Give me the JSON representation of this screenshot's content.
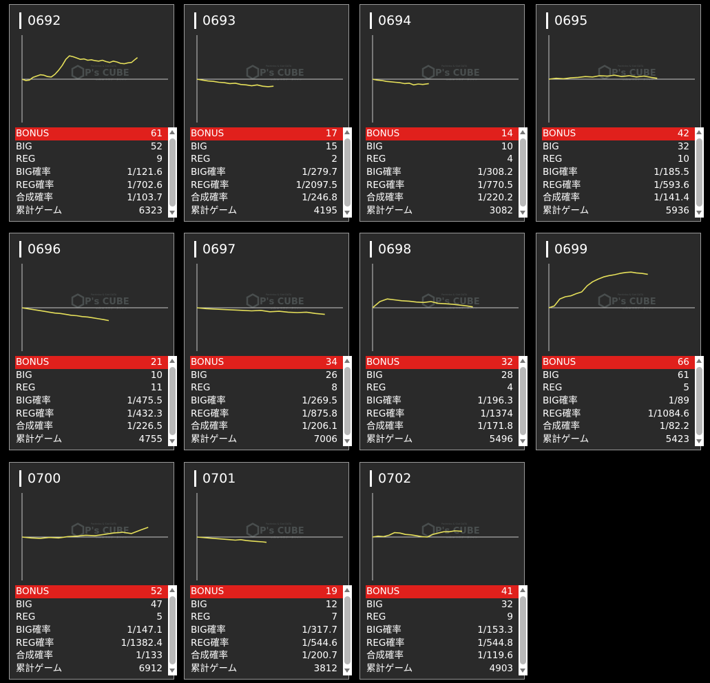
{
  "colors": {
    "background": "#000000",
    "card": "#2a2a2a",
    "bonus_row": "#e0201c",
    "graph_line": "#e6e05a",
    "axis": "#c8c8c8"
  },
  "watermark": {
    "logo": "P's CUBE",
    "small_top": "Pachinko & Slot DATA",
    "small_bottom": "online ミニデータサイト"
  },
  "labels": {
    "bonus": "BONUS",
    "big": "BIG",
    "reg": "REG",
    "big_rate": "BIG確率",
    "reg_rate": "REG確率",
    "combined_rate": "合成確率",
    "total_games": "累計ゲーム"
  },
  "machines": [
    {
      "id": "0692",
      "bonus": "61",
      "big": "52",
      "reg": "9",
      "big_rate": "1/121.6",
      "reg_rate": "1/702.6",
      "combined_rate": "1/103.7",
      "total_games": "6323"
    },
    {
      "id": "0693",
      "bonus": "17",
      "big": "15",
      "reg": "2",
      "big_rate": "1/279.7",
      "reg_rate": "1/2097.5",
      "combined_rate": "1/246.8",
      "total_games": "4195"
    },
    {
      "id": "0694",
      "bonus": "14",
      "big": "10",
      "reg": "4",
      "big_rate": "1/308.2",
      "reg_rate": "1/770.5",
      "combined_rate": "1/220.2",
      "total_games": "3082"
    },
    {
      "id": "0695",
      "bonus": "42",
      "big": "32",
      "reg": "10",
      "big_rate": "1/185.5",
      "reg_rate": "1/593.6",
      "combined_rate": "1/141.4",
      "total_games": "5936"
    },
    {
      "id": "0696",
      "bonus": "21",
      "big": "10",
      "reg": "11",
      "big_rate": "1/475.5",
      "reg_rate": "1/432.3",
      "combined_rate": "1/226.5",
      "total_games": "4755"
    },
    {
      "id": "0697",
      "bonus": "34",
      "big": "26",
      "reg": "8",
      "big_rate": "1/269.5",
      "reg_rate": "1/875.8",
      "combined_rate": "1/206.1",
      "total_games": "7006"
    },
    {
      "id": "0698",
      "bonus": "32",
      "big": "28",
      "reg": "4",
      "big_rate": "1/196.3",
      "reg_rate": "1/1374",
      "combined_rate": "1/171.8",
      "total_games": "5496"
    },
    {
      "id": "0699",
      "bonus": "66",
      "big": "61",
      "reg": "5",
      "big_rate": "1/89",
      "reg_rate": "1/1084.6",
      "combined_rate": "1/82.2",
      "total_games": "5423"
    },
    {
      "id": "0700",
      "bonus": "52",
      "big": "47",
      "reg": "5",
      "big_rate": "1/147.1",
      "reg_rate": "1/1382.4",
      "combined_rate": "1/133",
      "total_games": "6912"
    },
    {
      "id": "0701",
      "bonus": "19",
      "big": "12",
      "reg": "7",
      "big_rate": "1/317.7",
      "reg_rate": "1/544.6",
      "combined_rate": "1/200.7",
      "total_games": "3812"
    },
    {
      "id": "0702",
      "bonus": "41",
      "big": "32",
      "reg": "9",
      "big_rate": "1/153.3",
      "reg_rate": "1/544.8",
      "combined_rate": "1/119.6",
      "total_games": "4903"
    }
  ],
  "chart_data": [
    {
      "type": "line",
      "x": [
        0,
        200,
        400,
        600,
        800,
        1000,
        1200,
        1400,
        1600,
        1800,
        2000,
        2200,
        2400,
        2600,
        2800,
        3000,
        3200,
        3400,
        3600,
        3800,
        4000,
        4200,
        4400,
        4600,
        4800,
        5000,
        5200,
        5400,
        5600,
        5800,
        6000,
        6200,
        6323
      ],
      "y": [
        0,
        -60,
        -40,
        80,
        140,
        200,
        180,
        120,
        100,
        220,
        400,
        620,
        900,
        1060,
        1020,
        960,
        900,
        920,
        860,
        880,
        840,
        820,
        860,
        800,
        760,
        820,
        780,
        720,
        700,
        740,
        760,
        900,
        980
      ]
    },
    {
      "type": "line",
      "x": [
        0,
        300,
        600,
        900,
        1200,
        1500,
        1800,
        2100,
        2400,
        2700,
        3000,
        3300,
        3600,
        3900,
        4195
      ],
      "y": [
        0,
        -40,
        -80,
        -100,
        -140,
        -160,
        -200,
        -180,
        -240,
        -260,
        -300,
        -260,
        -320,
        -340,
        -320
      ]
    },
    {
      "type": "line",
      "x": [
        0,
        250,
        500,
        750,
        1000,
        1250,
        1500,
        1750,
        2000,
        2250,
        2500,
        2750,
        3082
      ],
      "y": [
        0,
        -40,
        -60,
        -100,
        -120,
        -140,
        -160,
        -200,
        -180,
        -260,
        -220,
        -240,
        -200
      ]
    },
    {
      "type": "line",
      "x": [
        0,
        400,
        800,
        1200,
        1600,
        2000,
        2400,
        2800,
        3200,
        3600,
        4000,
        4400,
        4800,
        5200,
        5600,
        5936
      ],
      "y": [
        0,
        40,
        20,
        60,
        80,
        120,
        100,
        160,
        140,
        180,
        120,
        160,
        100,
        140,
        80,
        40
      ]
    },
    {
      "type": "line",
      "x": [
        0,
        300,
        600,
        900,
        1200,
        1500,
        1800,
        2100,
        2400,
        2700,
        3000,
        3300,
        3600,
        3900,
        4200,
        4500,
        4755
      ],
      "y": [
        0,
        -40,
        -80,
        -120,
        -160,
        -200,
        -240,
        -260,
        -300,
        -340,
        -360,
        -400,
        -420,
        -460,
        -500,
        -540,
        -580
      ]
    },
    {
      "type": "line",
      "x": [
        0,
        500,
        1000,
        1500,
        2000,
        2500,
        3000,
        3500,
        4000,
        4500,
        5000,
        5500,
        6000,
        6500,
        7006
      ],
      "y": [
        0,
        -40,
        -60,
        -80,
        -100,
        -120,
        -140,
        -120,
        -180,
        -160,
        -200,
        -220,
        -200,
        -260,
        -300
      ]
    },
    {
      "type": "line",
      "x": [
        0,
        400,
        800,
        1200,
        1600,
        2000,
        2400,
        2800,
        3200,
        3600,
        4000,
        4400,
        4800,
        5200,
        5496
      ],
      "y": [
        0,
        280,
        400,
        360,
        320,
        300,
        260,
        240,
        280,
        200,
        180,
        160,
        120,
        80,
        40
      ]
    },
    {
      "type": "line",
      "x": [
        0,
        300,
        600,
        900,
        1200,
        1500,
        1800,
        2100,
        2400,
        2700,
        3000,
        3300,
        3600,
        3900,
        4200,
        4500,
        4800,
        5100,
        5423
      ],
      "y": [
        0,
        80,
        400,
        500,
        540,
        640,
        720,
        1000,
        1180,
        1300,
        1400,
        1460,
        1500,
        1560,
        1600,
        1620,
        1580,
        1560,
        1520
      ]
    },
    {
      "type": "line",
      "x": [
        0,
        500,
        1000,
        1500,
        2000,
        2500,
        3000,
        3500,
        4000,
        4500,
        5000,
        5500,
        6000,
        6500,
        6912
      ],
      "y": [
        0,
        -40,
        -60,
        -20,
        -40,
        20,
        40,
        80,
        60,
        120,
        180,
        220,
        160,
        320,
        440
      ]
    },
    {
      "type": "line",
      "x": [
        0,
        300,
        600,
        900,
        1200,
        1500,
        1800,
        2100,
        2400,
        2700,
        3000,
        3300,
        3600,
        3812
      ],
      "y": [
        0,
        -20,
        -40,
        -60,
        -80,
        -100,
        -120,
        -140,
        -120,
        -160,
        -180,
        -200,
        -220,
        -240
      ]
    },
    {
      "type": "line",
      "x": [
        0,
        300,
        600,
        900,
        1200,
        1500,
        1800,
        2100,
        2400,
        2700,
        3000,
        3300,
        3600,
        3900,
        4200,
        4500,
        4903
      ],
      "y": [
        0,
        40,
        20,
        80,
        200,
        180,
        120,
        100,
        60,
        20,
        0,
        120,
        180,
        240,
        240,
        280,
        260
      ]
    }
  ]
}
